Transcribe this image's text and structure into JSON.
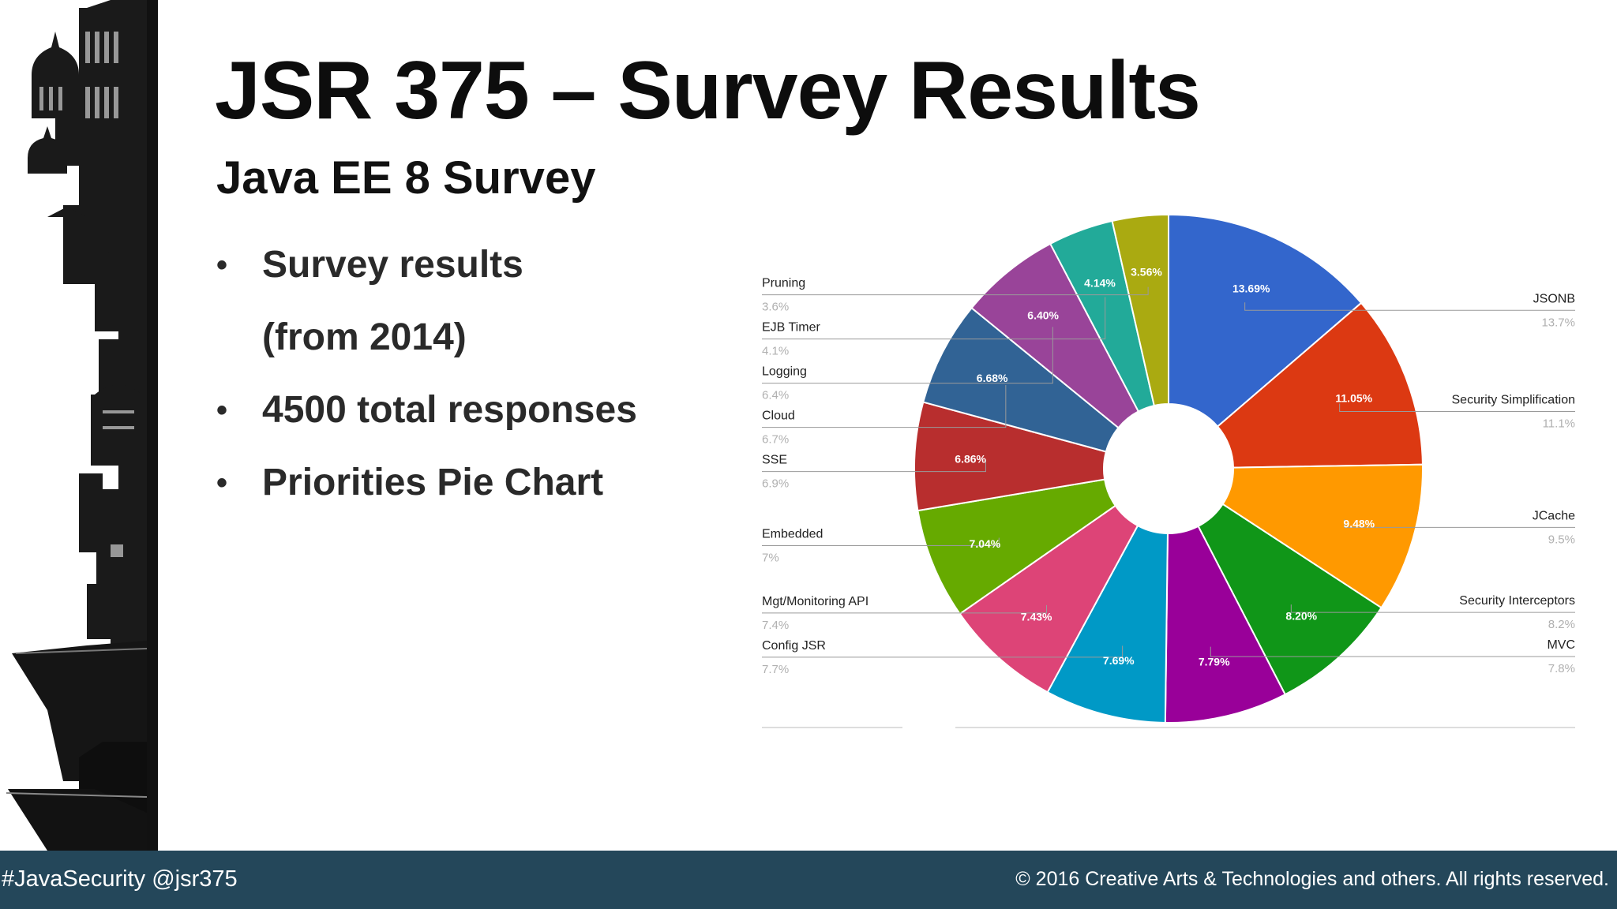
{
  "slide": {
    "title": "JSR 375 – Survey Results",
    "subtitle": "Java EE 8 Survey",
    "bullets": [
      {
        "text": "Survey results",
        "bullet": true
      },
      {
        "text": "(from 2014)",
        "bullet": false
      },
      {
        "text": "4500 total responses",
        "bullet": true
      },
      {
        "text": "Priorities Pie Chart",
        "bullet": true
      }
    ],
    "bullet_symbol": "•"
  },
  "footer": {
    "left": "#JavaSecurity @jsr375",
    "right": "© 2016 Creative Arts & Technologies and others. All rights reserved.",
    "background": "#24475a"
  },
  "chart_data": {
    "type": "pie",
    "donut": true,
    "start": "top, clockwise",
    "slices": [
      {
        "label": "JSONB",
        "value": 13.69,
        "pct_label": "13.69%",
        "legend_value": "13.7%",
        "color": "#3366cc",
        "side": "right"
      },
      {
        "label": "Security Simplification",
        "value": 11.05,
        "pct_label": "11.05%",
        "legend_value": "11.1%",
        "color": "#dc3912",
        "side": "right"
      },
      {
        "label": "JCache",
        "value": 9.48,
        "pct_label": "9.48%",
        "legend_value": "9.5%",
        "color": "#ff9900",
        "side": "right"
      },
      {
        "label": "Security Interceptors",
        "value": 8.2,
        "pct_label": "8.20%",
        "legend_value": "8.2%",
        "color": "#109618",
        "side": "right"
      },
      {
        "label": "MVC",
        "value": 7.79,
        "pct_label": "7.79%",
        "legend_value": "7.8%",
        "color": "#990099",
        "side": "right"
      },
      {
        "label": "Config JSR",
        "value": 7.69,
        "pct_label": "7.69%",
        "legend_value": "7.7%",
        "color": "#0099c6",
        "side": "left"
      },
      {
        "label": "Mgt/Monitoring API",
        "value": 7.43,
        "pct_label": "7.43%",
        "legend_value": "7.4%",
        "color": "#dd4477",
        "side": "left"
      },
      {
        "label": "Embedded",
        "value": 7.04,
        "pct_label": "7.04%",
        "legend_value": "7%",
        "color": "#66aa00",
        "side": "left"
      },
      {
        "label": "SSE",
        "value": 6.86,
        "pct_label": "6.86%",
        "legend_value": "6.9%",
        "color": "#b82e2e",
        "side": "left"
      },
      {
        "label": "Cloud",
        "value": 6.68,
        "pct_label": "6.68%",
        "legend_value": "6.7%",
        "color": "#316395",
        "side": "left"
      },
      {
        "label": "Logging",
        "value": 6.4,
        "pct_label": "6.40%",
        "legend_value": "6.4%",
        "color": "#994499",
        "side": "left"
      },
      {
        "label": "EJB Timer",
        "value": 4.14,
        "pct_label": "4.14%",
        "legend_value": "4.1%",
        "color": "#22aa99",
        "side": "left"
      },
      {
        "label": "Pruning",
        "value": 3.56,
        "pct_label": "3.56%",
        "legend_value": "3.6%",
        "color": "#aaaa11",
        "side": "left"
      }
    ]
  }
}
